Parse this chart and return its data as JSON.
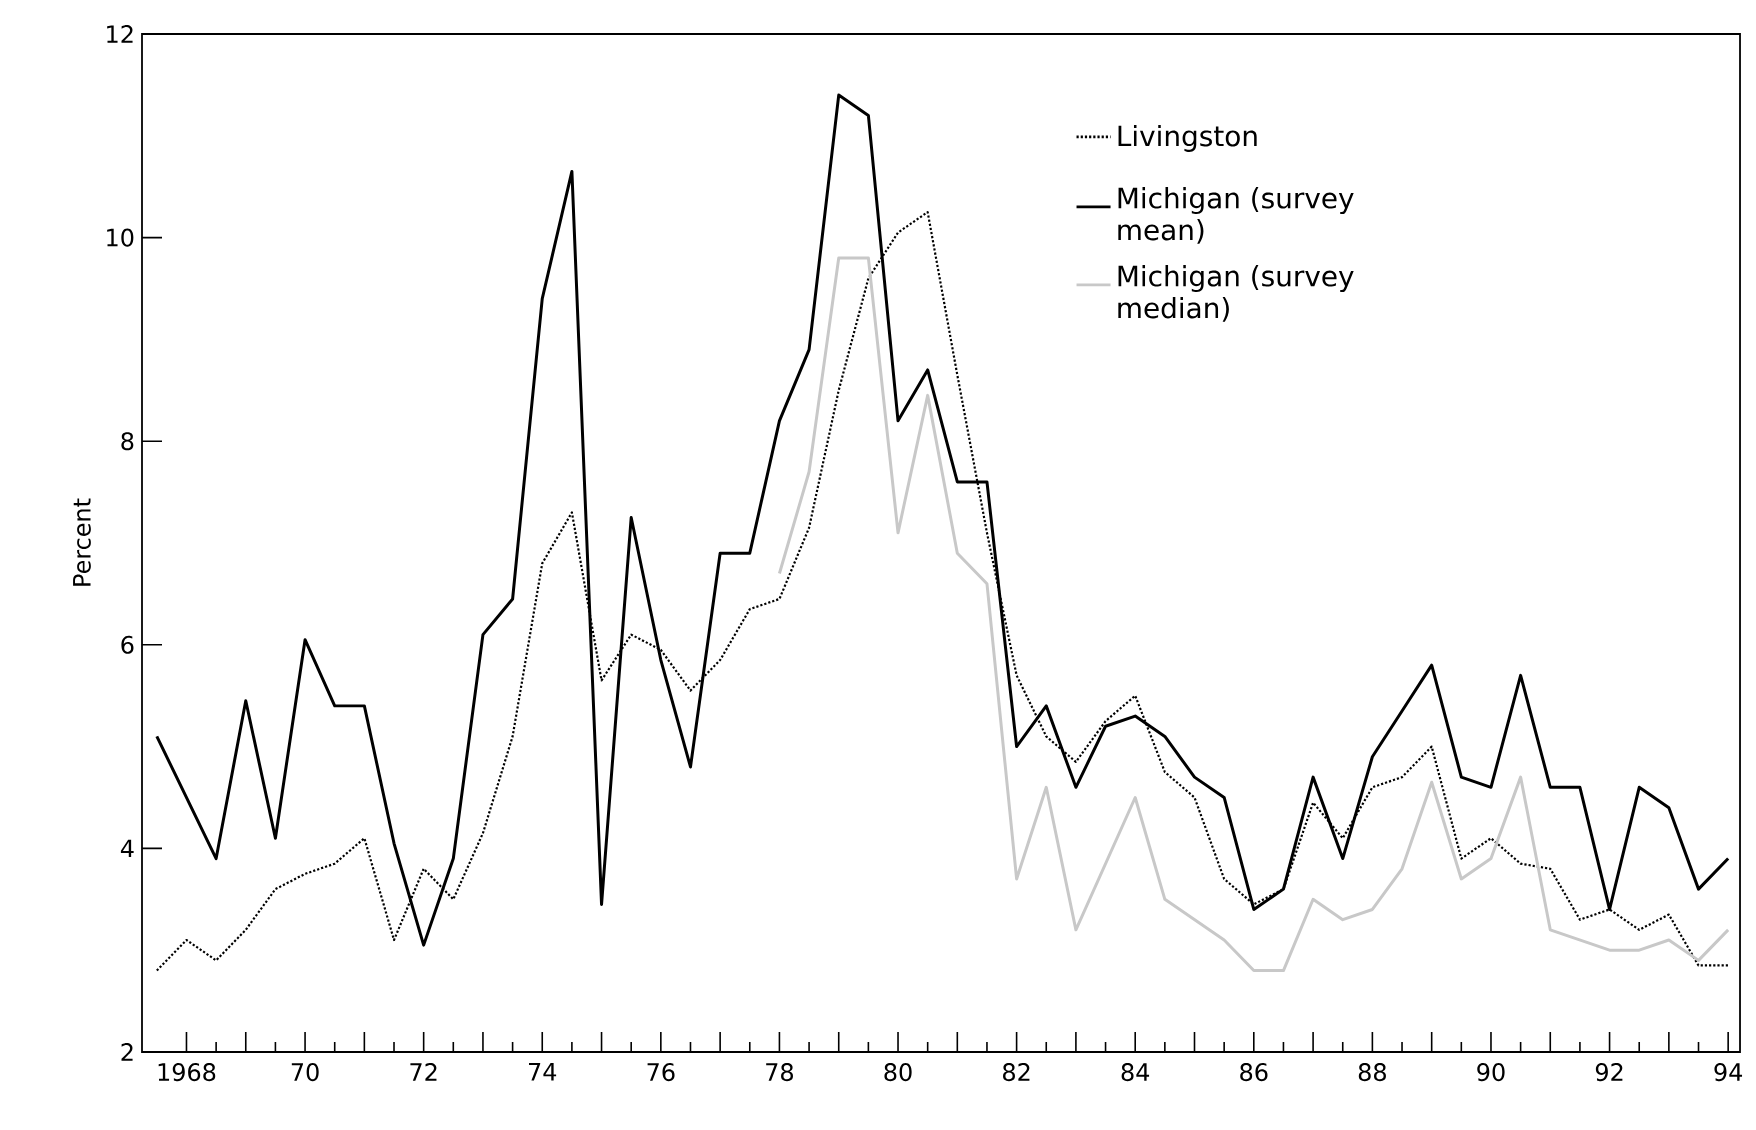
{
  "chart_data": {
    "type": "line",
    "ylabel": "Percent",
    "xlim": [
      1967.25,
      1994.2
    ],
    "ylim": [
      2,
      12
    ],
    "xticks": [
      {
        "value": 1968,
        "label": "1968"
      },
      {
        "value": 1969,
        "label": null
      },
      {
        "value": 1970,
        "label": "70"
      },
      {
        "value": 1971,
        "label": null
      },
      {
        "value": 1972,
        "label": "72"
      },
      {
        "value": 1973,
        "label": null
      },
      {
        "value": 1974,
        "label": "74"
      },
      {
        "value": 1975,
        "label": null
      },
      {
        "value": 1976,
        "label": "76"
      },
      {
        "value": 1977,
        "label": null
      },
      {
        "value": 1978,
        "label": "78"
      },
      {
        "value": 1979,
        "label": null
      },
      {
        "value": 1980,
        "label": "80"
      },
      {
        "value": 1981,
        "label": null
      },
      {
        "value": 1982,
        "label": "82"
      },
      {
        "value": 1983,
        "label": null
      },
      {
        "value": 1984,
        "label": "84"
      },
      {
        "value": 1985,
        "label": null
      },
      {
        "value": 1986,
        "label": "86"
      },
      {
        "value": 1987,
        "label": null
      },
      {
        "value": 1988,
        "label": "88"
      },
      {
        "value": 1989,
        "label": null
      },
      {
        "value": 1990,
        "label": "90"
      },
      {
        "value": 1991,
        "label": null
      },
      {
        "value": 1992,
        "label": "92"
      },
      {
        "value": 1993,
        "label": null
      },
      {
        "value": 1994,
        "label": "94"
      }
    ],
    "yticks": [
      2,
      4,
      6,
      8,
      10,
      12
    ],
    "grid": false,
    "legend": "top right",
    "series": [
      {
        "name": "Livingston",
        "color": "#000000",
        "line_style": "dotted",
        "x": [
          1967.5,
          1968,
          1968.5,
          1969,
          1969.5,
          1970,
          1970.5,
          1971,
          1971.5,
          1972,
          1972.5,
          1973,
          1973.5,
          1974,
          1974.5,
          1975,
          1975.5,
          1976,
          1976.5,
          1977,
          1977.5,
          1978,
          1978.5,
          1979,
          1979.5,
          1980,
          1980.5,
          1981,
          1981.5,
          1982,
          1982.5,
          1983,
          1983.5,
          1984,
          1984.5,
          1985,
          1985.5,
          1986,
          1986.5,
          1987,
          1987.5,
          1988,
          1988.5,
          1989,
          1989.5,
          1990,
          1990.5,
          1991,
          1991.5,
          1992,
          1992.5,
          1993,
          1993.5,
          1994
        ],
        "values": [
          2.8,
          3.1,
          2.9,
          3.2,
          3.6,
          3.75,
          3.85,
          4.1,
          3.1,
          3.8,
          3.5,
          4.15,
          5.1,
          6.8,
          7.3,
          5.65,
          6.1,
          5.95,
          5.55,
          5.85,
          6.35,
          6.45,
          7.15,
          8.5,
          9.6,
          10.05,
          10.25,
          8.65,
          7.1,
          5.7,
          5.1,
          4.85,
          5.25,
          5.5,
          4.75,
          4.5,
          3.7,
          3.45,
          3.6,
          4.45,
          4.1,
          4.6,
          4.7,
          5.0,
          3.9,
          4.1,
          3.85,
          3.8,
          3.3,
          3.4,
          3.2,
          3.35,
          2.85,
          2.85
        ]
      },
      {
        "name": "Michigan (survey mean)",
        "color": "#000000",
        "line_style": "solid",
        "x": [
          1967.5,
          1968.5,
          1969,
          1969.5,
          1970,
          1970.5,
          1971,
          1971.5,
          1972,
          1972.5,
          1973,
          1973.5,
          1974,
          1974.5,
          1975,
          1975.5,
          1976,
          1976.5,
          1977,
          1977.5,
          1978,
          1978.5,
          1979,
          1979.5,
          1980,
          1980.5,
          1981,
          1981.5,
          1982,
          1982.5,
          1983,
          1983.5,
          1984,
          1984.5,
          1985,
          1985.5,
          1986,
          1986.5,
          1987,
          1987.5,
          1988,
          1988.5,
          1989,
          1989.5,
          1990,
          1990.5,
          1991,
          1991.5,
          1992,
          1992.5,
          1993,
          1993.5,
          1994
        ],
        "values": [
          5.1,
          3.9,
          5.45,
          4.1,
          6.05,
          5.4,
          5.4,
          4.05,
          3.05,
          3.9,
          6.1,
          6.45,
          9.4,
          10.65,
          3.45,
          7.25,
          5.85,
          4.8,
          6.9,
          6.9,
          8.2,
          8.9,
          11.4,
          11.2,
          8.2,
          8.7,
          7.6,
          7.6,
          5.0,
          5.4,
          4.6,
          5.2,
          5.3,
          5.1,
          4.7,
          4.5,
          3.4,
          3.6,
          4.7,
          3.9,
          4.9,
          5.35,
          5.8,
          4.7,
          4.6,
          5.7,
          4.6,
          4.6,
          3.4,
          4.6,
          4.4,
          3.6,
          3.9
        ]
      },
      {
        "name": "Michigan (survey median)",
        "color": "#c8c8c8",
        "line_style": "solid",
        "x": [
          1978,
          1978.5,
          1979,
          1979.5,
          1980,
          1980.5,
          1981,
          1981.5,
          1982,
          1982.5,
          1983,
          1983.5,
          1984,
          1984.5,
          1985,
          1985.5,
          1986,
          1986.5,
          1987,
          1987.5,
          1988,
          1988.5,
          1989,
          1989.5,
          1990,
          1990.5,
          1991,
          1991.5,
          1992,
          1992.5,
          1993,
          1993.5,
          1994
        ],
        "values": [
          6.7,
          7.7,
          9.8,
          9.8,
          7.1,
          8.45,
          6.9,
          6.6,
          3.7,
          4.6,
          3.2,
          3.85,
          4.5,
          3.5,
          3.3,
          3.1,
          2.8,
          2.8,
          3.5,
          3.3,
          3.4,
          3.8,
          4.65,
          3.7,
          3.9,
          4.7,
          3.2,
          3.1,
          3.0,
          3.0,
          3.1,
          2.9,
          3.2
        ]
      }
    ]
  }
}
